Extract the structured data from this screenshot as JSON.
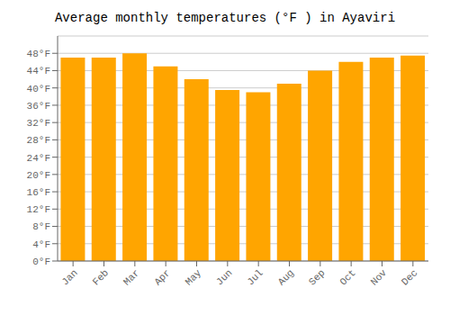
{
  "chart_data": {
    "type": "bar",
    "title": "Average monthly temperatures (°F ) in Ayaviri",
    "categories": [
      "Jan",
      "Feb",
      "Mar",
      "Apr",
      "May",
      "Jun",
      "Jul",
      "Aug",
      "Sep",
      "Oct",
      "Nov",
      "Dec"
    ],
    "values": [
      47.0,
      47.0,
      48.0,
      45.0,
      42.0,
      39.5,
      39.0,
      41.0,
      44.0,
      46.0,
      47.0,
      47.5
    ],
    "color": "#FFA500",
    "ylim": [
      0,
      52
    ],
    "yticks": [
      {
        "value": 0,
        "label": "0°F"
      },
      {
        "value": 4,
        "label": "4°F"
      },
      {
        "value": 8,
        "label": "8°F"
      },
      {
        "value": 12,
        "label": "12°F"
      },
      {
        "value": 16,
        "label": "16°F"
      },
      {
        "value": 20,
        "label": "20°F"
      },
      {
        "value": 24,
        "label": "24°F"
      },
      {
        "value": 28,
        "label": "28°F"
      },
      {
        "value": 32,
        "label": "32°F"
      },
      {
        "value": 36,
        "label": "36°F"
      },
      {
        "value": 40,
        "label": "40°F"
      },
      {
        "value": 44,
        "label": "44°F"
      },
      {
        "value": 48,
        "label": "48°F"
      }
    ],
    "grid": true
  }
}
